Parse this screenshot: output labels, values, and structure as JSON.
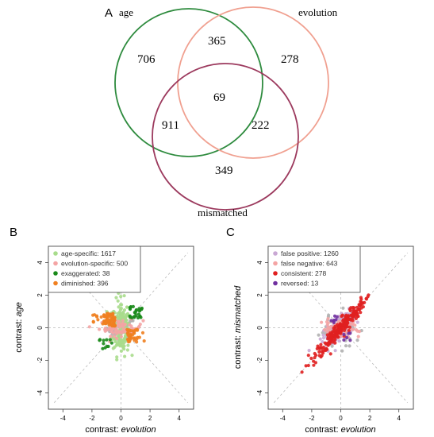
{
  "figure": {
    "panel_labels": [
      "A",
      "B",
      "C"
    ]
  },
  "venn": {
    "sets": [
      {
        "name": "age",
        "color": "#2e8b3e"
      },
      {
        "name": "evolution",
        "color": "#f0a090"
      },
      {
        "name": "mismatched",
        "color": "#9c3a5e"
      }
    ],
    "regions": {
      "age_only": "706",
      "age_evolution": "365",
      "evolution_only": "278",
      "all_three": "69",
      "age_mismatched": "911",
      "evolution_mismatched": "222",
      "mismatched_only": "349"
    }
  },
  "colors": {
    "age_specific": "#a8dc8c",
    "evolution_specific": "#f4a4a4",
    "exaggerated": "#1a8a1a",
    "diminished": "#f08020",
    "false_positive": "#c9a8d4",
    "false_negative": "#f4a4a4",
    "consistent": "#e02020",
    "reversed": "#7030a0",
    "grey_points": "#b0b0b0"
  },
  "chart_data": [
    {
      "type": "scatter",
      "panel": "B",
      "xlabel_prefix": "contrast: ",
      "xlabel_var": "evolution",
      "ylabel_prefix": "contrast: ",
      "ylabel_var": "age",
      "xlim": [
        -5,
        5
      ],
      "ylim": [
        -5,
        5
      ],
      "xticks": [
        -4,
        -2,
        0,
        2,
        4
      ],
      "yticks": [
        -4,
        -2,
        0,
        2,
        4
      ],
      "legend_position": "top-left",
      "series": [
        {
          "name": "age-specific: 1617",
          "color_key": "age_specific"
        },
        {
          "name": "evolution-specific: 500",
          "color_key": "evolution_specific"
        },
        {
          "name": "exaggerated: 38",
          "color_key": "exaggerated"
        },
        {
          "name": "diminished: 396",
          "color_key": "diminished"
        }
      ]
    },
    {
      "type": "scatter",
      "panel": "C",
      "xlabel_prefix": "contrast: ",
      "xlabel_var": "evolution",
      "ylabel_prefix": "contrast: ",
      "ylabel_var": "mismatched",
      "xlim": [
        -5,
        5
      ],
      "ylim": [
        -5,
        5
      ],
      "xticks": [
        -4,
        -2,
        0,
        2,
        4
      ],
      "yticks": [
        -4,
        -2,
        0,
        2,
        4
      ],
      "legend_position": "top-left",
      "series": [
        {
          "name": "false positive: 1260",
          "color_key": "false_positive"
        },
        {
          "name": "false negative: 643",
          "color_key": "false_negative"
        },
        {
          "name": "consistent: 278",
          "color_key": "consistent"
        },
        {
          "name": "reversed: 13",
          "color_key": "reversed"
        }
      ]
    }
  ]
}
